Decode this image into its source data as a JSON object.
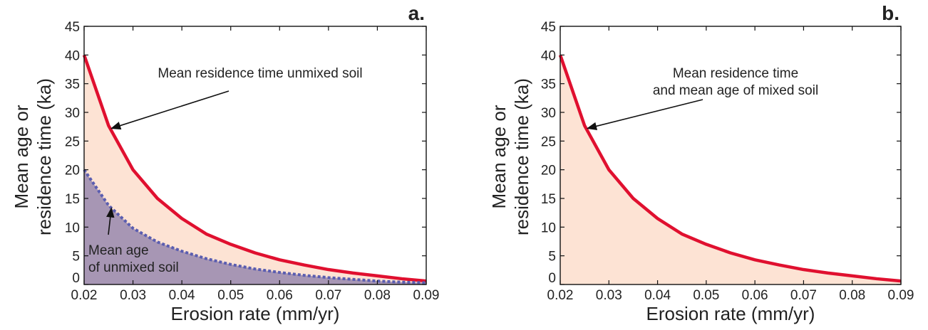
{
  "chart_data": [
    {
      "type": "area",
      "panel_label": "a.",
      "xlabel": "Erosion rate (mm/yr)",
      "ylabel_lines": [
        "Mean age or",
        "residence time (ka)"
      ],
      "xlim": [
        0.02,
        0.09
      ],
      "ylim": [
        0,
        45
      ],
      "xticks": [
        0.02,
        0.03,
        0.04,
        0.05,
        0.06,
        0.07,
        0.08,
        0.09
      ],
      "xtick_labels": [
        "0.02",
        "0.03",
        "0.04",
        "0.05",
        "0.06",
        "0.07",
        "0.08",
        "0.09"
      ],
      "yticks": [
        0,
        5,
        10,
        15,
        20,
        25,
        30,
        35,
        40,
        45
      ],
      "ytick_labels": [
        "0",
        "5",
        "10",
        "15",
        "20",
        "25",
        "30",
        "35",
        "40",
        "45"
      ],
      "grid": false,
      "x": [
        0.02,
        0.025,
        0.03,
        0.035,
        0.04,
        0.045,
        0.05,
        0.055,
        0.06,
        0.065,
        0.07,
        0.075,
        0.08,
        0.085,
        0.09
      ],
      "series": [
        {
          "name": "Mean residence time unmixed soil",
          "style": "solid",
          "color": "#e0102f",
          "fill": "#fde3d4",
          "values": [
            40,
            27.7,
            20,
            15,
            11.5,
            8.8,
            7,
            5.5,
            4.3,
            3.4,
            2.6,
            2,
            1.5,
            1,
            0.6
          ]
        },
        {
          "name": "Mean age of unmixed soil",
          "style": "dotted",
          "color": "#5a5db0",
          "fill": "#a796b4",
          "values": [
            20,
            13.8,
            9.8,
            7.4,
            5.8,
            4.5,
            3.5,
            2.7,
            2.1,
            1.6,
            1.2,
            0.9,
            0.6,
            0.4,
            0.3
          ]
        }
      ],
      "annotations": [
        {
          "lines": [
            "Mean residence time unmixed soil"
          ],
          "arrow_to": [
            0.025,
            27.7
          ]
        },
        {
          "lines": [
            "Mean age",
            "of unmixed soil"
          ],
          "arrow_to": [
            0.025,
            13.8
          ]
        }
      ]
    },
    {
      "type": "area",
      "panel_label": "b.",
      "xlabel": "Erosion rate (mm/yr)",
      "ylabel_lines": [
        "Mean age or",
        "residence time (ka)"
      ],
      "xlim": [
        0.02,
        0.09
      ],
      "ylim": [
        0,
        45
      ],
      "xticks": [
        0.02,
        0.03,
        0.04,
        0.05,
        0.06,
        0.07,
        0.08,
        0.09
      ],
      "xtick_labels": [
        "0.02",
        "0.03",
        "0.04",
        "0.05",
        "0.06",
        "0.07",
        "0.08",
        "0.09"
      ],
      "yticks": [
        0,
        5,
        10,
        15,
        20,
        25,
        30,
        35,
        40,
        45
      ],
      "ytick_labels": [
        "0",
        "5",
        "10",
        "15",
        "20",
        "25",
        "30",
        "35",
        "40",
        "45"
      ],
      "grid": false,
      "x": [
        0.02,
        0.025,
        0.03,
        0.035,
        0.04,
        0.045,
        0.05,
        0.055,
        0.06,
        0.065,
        0.07,
        0.075,
        0.08,
        0.085,
        0.09
      ],
      "series": [
        {
          "name": "Mean residence time and mean age of mixed soil",
          "style": "solid",
          "color": "#e0102f",
          "fill": "#fde3d4",
          "values": [
            40,
            27.7,
            20,
            15,
            11.5,
            8.8,
            7,
            5.5,
            4.3,
            3.4,
            2.6,
            2,
            1.5,
            1,
            0.6
          ]
        }
      ],
      "annotations": [
        {
          "lines": [
            "Mean residence time",
            "and mean age of mixed soil"
          ],
          "arrow_to": [
            0.025,
            27.7
          ]
        }
      ]
    }
  ]
}
